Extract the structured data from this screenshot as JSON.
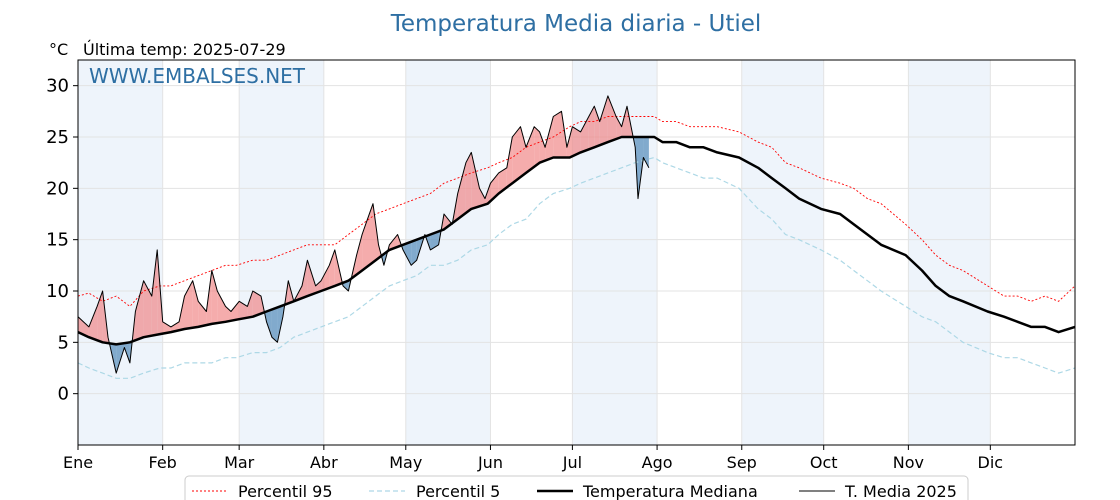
{
  "chart_data": {
    "type": "line",
    "title": "Temperatura Media diaria - Utiel",
    "unit_label": "°C",
    "subtitle": "Última temp: 2025-07-29",
    "watermark": "WWW.EMBALSES.NET",
    "ylim": [
      -5,
      32.5
    ],
    "yticks": [
      0,
      5,
      10,
      15,
      20,
      25,
      30
    ],
    "xlim": [
      1,
      366
    ],
    "month_labels": [
      "Ene",
      "Feb",
      "Mar",
      "Abr",
      "May",
      "Jun",
      "Jul",
      "Ago",
      "Sep",
      "Oct",
      "Nov",
      "Dic"
    ],
    "month_starts": [
      1,
      32,
      60,
      91,
      121,
      152,
      182,
      213,
      244,
      274,
      305,
      335
    ],
    "grid": true,
    "legend_position": "bottom",
    "colors": {
      "p95": "#ff0000",
      "p5": "#add8e6",
      "median": "#000000",
      "current": "#000000",
      "above_fill": "#f08080",
      "below_fill": "#4682b4",
      "title": "#2e6fa3",
      "band": "#eef4fb"
    },
    "x_day": [
      1,
      5,
      10,
      15,
      20,
      25,
      31,
      35,
      40,
      45,
      50,
      55,
      59,
      65,
      70,
      75,
      80,
      85,
      90,
      95,
      100,
      105,
      110,
      115,
      120,
      125,
      130,
      135,
      140,
      145,
      151,
      155,
      160,
      165,
      170,
      175,
      181,
      185,
      190,
      195,
      200,
      205,
      212,
      215,
      220,
      225,
      230,
      235,
      243,
      250,
      255,
      260,
      265,
      273,
      280,
      285,
      290,
      295,
      304,
      310,
      315,
      320,
      325,
      334,
      340,
      345,
      350,
      355,
      360,
      366
    ],
    "series": [
      {
        "name": "Percentil 95",
        "values": [
          9.5,
          9.8,
          9.0,
          9.5,
          8.5,
          10.0,
          10.5,
          10.5,
          11.0,
          11.5,
          12.0,
          12.5,
          12.5,
          13.0,
          13.0,
          13.5,
          14.0,
          14.5,
          14.5,
          14.5,
          15.5,
          16.5,
          17.5,
          18.0,
          18.5,
          19.0,
          19.5,
          20.5,
          21.0,
          21.5,
          22.0,
          22.5,
          23.0,
          24.0,
          24.5,
          25.0,
          26.0,
          26.5,
          26.5,
          27.0,
          27.0,
          27.0,
          27.0,
          26.5,
          26.5,
          26.0,
          26.0,
          26.0,
          25.5,
          24.5,
          24.0,
          22.5,
          22.0,
          21.0,
          20.5,
          20.0,
          19.0,
          18.5,
          16.5,
          15.0,
          13.5,
          12.5,
          12.0,
          10.5,
          9.5,
          9.5,
          9.0,
          9.5,
          9.0,
          10.5
        ]
      },
      {
        "name": "Percentil 5",
        "values": [
          3.0,
          2.5,
          2.0,
          1.5,
          1.5,
          2.0,
          2.5,
          2.5,
          3.0,
          3.0,
          3.0,
          3.5,
          3.5,
          4.0,
          4.0,
          4.5,
          5.5,
          6.0,
          6.5,
          7.0,
          7.5,
          8.5,
          9.5,
          10.5,
          11.0,
          11.5,
          12.5,
          12.5,
          13.0,
          14.0,
          14.5,
          15.5,
          16.5,
          17.0,
          18.5,
          19.5,
          20.0,
          20.5,
          21.0,
          21.5,
          22.0,
          22.5,
          23.0,
          22.5,
          22.0,
          21.5,
          21.0,
          21.0,
          20.0,
          18.0,
          17.0,
          15.5,
          15.0,
          14.0,
          13.0,
          12.0,
          11.0,
          10.0,
          8.5,
          7.5,
          7.0,
          6.0,
          5.0,
          4.0,
          3.5,
          3.5,
          3.0,
          2.5,
          2.0,
          2.5
        ]
      },
      {
        "name": "Temperatura Mediana",
        "values": [
          6.0,
          5.5,
          5.0,
          4.8,
          5.0,
          5.5,
          5.8,
          6.0,
          6.3,
          6.5,
          6.8,
          7.0,
          7.2,
          7.5,
          8.0,
          8.5,
          9.0,
          9.5,
          10.0,
          10.5,
          11.0,
          12.0,
          13.0,
          14.0,
          14.5,
          15.0,
          15.5,
          16.0,
          17.0,
          18.0,
          18.5,
          19.5,
          20.5,
          21.5,
          22.5,
          23.0,
          23.0,
          23.5,
          24.0,
          24.5,
          25.0,
          25.0,
          25.0,
          24.5,
          24.5,
          24.0,
          24.0,
          23.5,
          23.0,
          22.0,
          21.0,
          20.0,
          19.0,
          18.0,
          17.5,
          16.5,
          15.5,
          14.5,
          13.5,
          12.0,
          10.5,
          9.5,
          9.0,
          8.0,
          7.5,
          7.0,
          6.5,
          6.5,
          6.0,
          6.5
        ]
      }
    ],
    "current_year": {
      "name": "T. Media 2025",
      "x_day": [
        1,
        5,
        8,
        10,
        12,
        15,
        18,
        20,
        22,
        25,
        28,
        30,
        32,
        35,
        38,
        40,
        43,
        45,
        48,
        50,
        52,
        55,
        57,
        60,
        63,
        65,
        68,
        70,
        72,
        74,
        76,
        78,
        80,
        83,
        85,
        88,
        90,
        93,
        95,
        98,
        100,
        103,
        105,
        107,
        109,
        111,
        113,
        115,
        118,
        120,
        123,
        125,
        128,
        130,
        133,
        135,
        138,
        140,
        143,
        145,
        148,
        150,
        152,
        155,
        158,
        160,
        163,
        165,
        168,
        170,
        172,
        175,
        178,
        180,
        182,
        185,
        188,
        190,
        192,
        195,
        198,
        200,
        202,
        205,
        206,
        208,
        210
      ],
      "values": [
        7.5,
        6.5,
        8.5,
        10.0,
        5.5,
        2.0,
        4.5,
        3.0,
        8.0,
        11.0,
        9.5,
        14.0,
        7.0,
        6.5,
        7.0,
        9.5,
        11.0,
        9.0,
        8.0,
        12.0,
        10.0,
        8.5,
        8.0,
        9.0,
        8.5,
        10.0,
        9.5,
        7.0,
        5.5,
        5.0,
        7.5,
        11.0,
        9.0,
        10.5,
        13.0,
        10.5,
        11.0,
        12.5,
        14.0,
        10.5,
        10.0,
        13.5,
        15.5,
        17.0,
        18.5,
        14.5,
        12.5,
        14.5,
        15.5,
        14.0,
        12.5,
        13.0,
        15.5,
        14.0,
        14.5,
        17.5,
        16.5,
        19.5,
        22.5,
        23.5,
        20.0,
        19.0,
        20.5,
        21.5,
        22.0,
        25.0,
        26.0,
        24.0,
        26.0,
        25.5,
        24.0,
        27.0,
        27.5,
        24.0,
        26.0,
        25.5,
        27.0,
        28.0,
        26.5,
        29.0,
        27.0,
        26.0,
        28.0,
        24.0,
        19.0,
        23.0,
        22.0
      ]
    },
    "legend": [
      {
        "label": "Percentil 95",
        "style": "dotted",
        "color": "#ff0000"
      },
      {
        "label": "Percentil 5",
        "style": "dashed",
        "color": "#add8e6"
      },
      {
        "label": "Temperatura Mediana",
        "style": "solid-thick",
        "color": "#000000"
      },
      {
        "label": "T. Media 2025",
        "style": "solid-thin",
        "color": "#000000"
      }
    ]
  }
}
